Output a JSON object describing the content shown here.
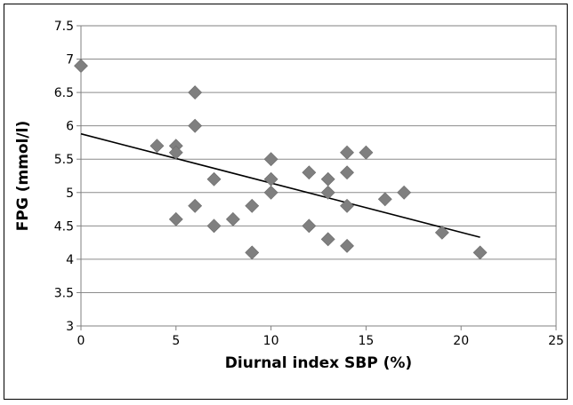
{
  "chart_data": {
    "type": "scatter",
    "xlabel": "Diurnal index SBP (%)",
    "ylabel": "FPG (mmol/l)",
    "xlim": [
      0,
      25
    ],
    "ylim": [
      3,
      7.5
    ],
    "x_ticks": [
      "0",
      "5",
      "10",
      "15",
      "20",
      "25"
    ],
    "y_ticks": [
      "3",
      "3.5",
      "4",
      "4.5",
      "5",
      "5.5",
      "6",
      "6.5",
      "7",
      "7.5"
    ],
    "grid": "horizontal",
    "marker_color": "#7f7f7f",
    "trendline": {
      "type": "linear",
      "x": [
        0,
        21
      ],
      "y": [
        5.88,
        4.33
      ],
      "color": "#000000"
    },
    "points": [
      {
        "x": 0,
        "y": 6.9
      },
      {
        "x": 4,
        "y": 5.7
      },
      {
        "x": 5,
        "y": 5.7
      },
      {
        "x": 5,
        "y": 5.6
      },
      {
        "x": 5,
        "y": 4.6
      },
      {
        "x": 6,
        "y": 6.5
      },
      {
        "x": 6,
        "y": 6.0
      },
      {
        "x": 6,
        "y": 4.8
      },
      {
        "x": 7,
        "y": 5.2
      },
      {
        "x": 7,
        "y": 4.5
      },
      {
        "x": 8,
        "y": 4.6
      },
      {
        "x": 9,
        "y": 4.8
      },
      {
        "x": 9,
        "y": 4.1
      },
      {
        "x": 10,
        "y": 5.5
      },
      {
        "x": 10,
        "y": 5.2
      },
      {
        "x": 10,
        "y": 5.0
      },
      {
        "x": 12,
        "y": 5.3
      },
      {
        "x": 12,
        "y": 4.5
      },
      {
        "x": 13,
        "y": 5.2
      },
      {
        "x": 13,
        "y": 5.0
      },
      {
        "x": 13,
        "y": 4.3
      },
      {
        "x": 14,
        "y": 5.6
      },
      {
        "x": 14,
        "y": 5.3
      },
      {
        "x": 14,
        "y": 4.8
      },
      {
        "x": 14,
        "y": 4.2
      },
      {
        "x": 15,
        "y": 5.6
      },
      {
        "x": 16,
        "y": 4.9
      },
      {
        "x": 17,
        "y": 5.0
      },
      {
        "x": 19,
        "y": 4.4
      },
      {
        "x": 21,
        "y": 4.1
      }
    ]
  }
}
